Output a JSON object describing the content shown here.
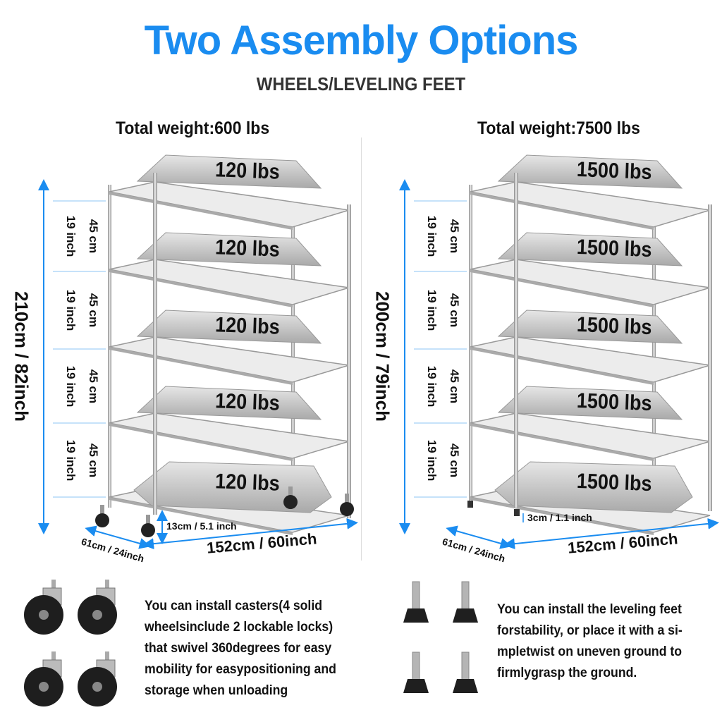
{
  "header": {
    "title": "Two Assembly Options",
    "subtitle": "WHEELS/LEVELING FEET",
    "title_color": "#1a8cf0"
  },
  "left": {
    "total_weight": "Total weight:600 lbs",
    "shelf_loads": [
      "120 lbs",
      "120 lbs",
      "120 lbs",
      "120 lbs",
      "120 lbs"
    ],
    "height": "210cm / 82inch",
    "segment_cm": "45 cm",
    "segment_inch": "19 inch",
    "clearance": "13cm / 5.1 inch",
    "depth": "61cm / 24inch",
    "width": "152cm / 60inch",
    "description": "You can install casters(4 solid wheelsinclude 2 lockable locks) that swivel 360degrees for easy mobility for easypositioning and storage when unloading",
    "icon": "caster-wheel-icon"
  },
  "right": {
    "total_weight": "Total weight:7500 lbs",
    "shelf_loads": [
      "1500 lbs",
      "1500 lbs",
      "1500 lbs",
      "1500 lbs",
      "1500 lbs"
    ],
    "height": "200cm / 79inch",
    "segment_cm": "45 cm",
    "segment_inch": "19 inch",
    "clearance": "3cm / 1.1 inch",
    "depth": "61cm / 24inch",
    "width": "152cm / 60inch",
    "description": "You can install the leveling feet forstability, or place it with a si-mpletwist on uneven ground to firmlygrasp the ground.",
    "icon": "leveling-foot-icon"
  },
  "colors": {
    "dimension": "#1a8cf0",
    "metal": "#c8c8c8"
  }
}
